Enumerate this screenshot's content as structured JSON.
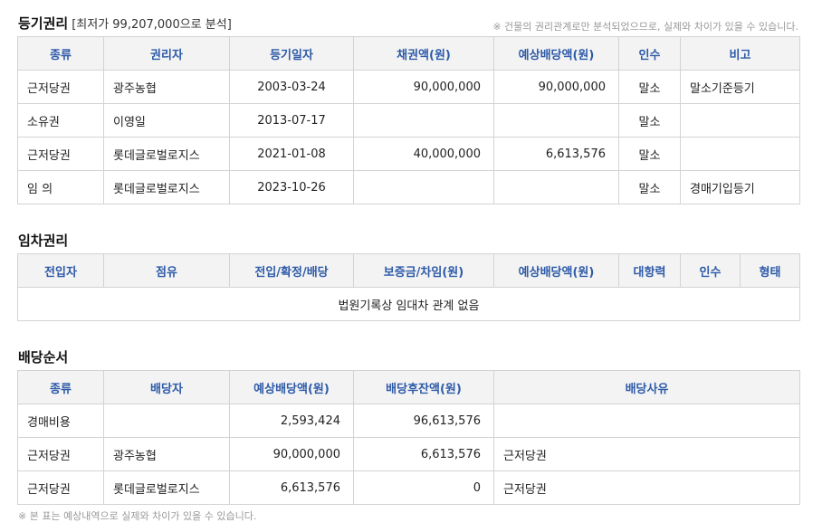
{
  "rights": {
    "title": "등기권리",
    "subtitle": "[최저가 99,207,000으로 분석]",
    "note": "※ 건물의 권리관계로만 분석되었으므로, 실제와 차이가 있을 수 있습니다.",
    "headers": [
      "종류",
      "권리자",
      "등기일자",
      "채권액(원)",
      "예상배당액(원)",
      "인수",
      "비고"
    ],
    "rows": [
      [
        "근저당권",
        "광주농협",
        "2003-03-24",
        "90,000,000",
        "90,000,000",
        "말소",
        "말소기준등기"
      ],
      [
        "소유권",
        "이영일",
        "2013-07-17",
        "",
        "",
        "말소",
        ""
      ],
      [
        "근저당권",
        "롯데글로벌로지스",
        "2021-01-08",
        "40,000,000",
        "6,613,576",
        "말소",
        ""
      ],
      [
        "임 의",
        "롯데글로벌로지스",
        "2023-10-26",
        "",
        "",
        "말소",
        "경매기입등기"
      ]
    ]
  },
  "lease": {
    "title": "임차권리",
    "headers": [
      "전입자",
      "점유",
      "전입/확정/배당",
      "보증금/차임(원)",
      "예상배당액(원)",
      "대항력",
      "인수",
      "형태"
    ],
    "empty_message": "법원기록상 임대차 관계 없음"
  },
  "distribution": {
    "title": "배당순서",
    "headers": [
      "종류",
      "배당자",
      "예상배당액(원)",
      "배당후잔액(원)",
      "배당사유"
    ],
    "rows": [
      [
        "경매비용",
        "",
        "2,593,424",
        "96,613,576",
        ""
      ],
      [
        "근저당권",
        "광주농협",
        "90,000,000",
        "6,613,576",
        "근저당권"
      ],
      [
        "근저당권",
        "롯데글로벌로지스",
        "6,613,576",
        "0",
        "근저당권"
      ]
    ],
    "note": "※ 본 표는 예상내역으로 실제와 차이가 있을 수 있습니다."
  }
}
